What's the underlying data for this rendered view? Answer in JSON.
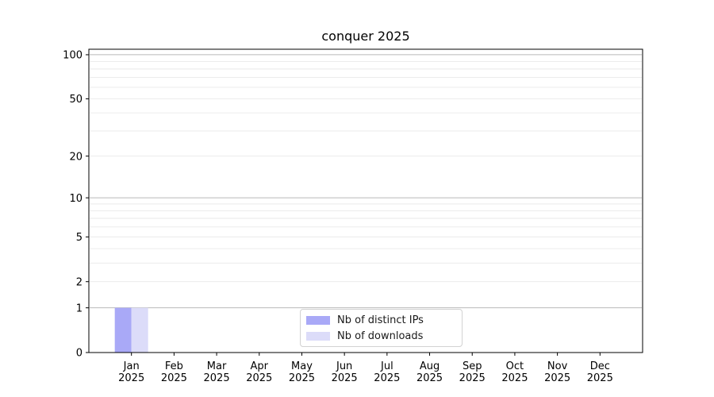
{
  "chart_data": {
    "type": "bar",
    "title": "conquer 2025",
    "categories": [
      "Jan 2025",
      "Feb 2025",
      "Mar 2025",
      "Apr 2025",
      "May 2025",
      "Jun 2025",
      "Jul 2025",
      "Aug 2025",
      "Sep 2025",
      "Oct 2025",
      "Nov 2025",
      "Dec 2025"
    ],
    "series": [
      {
        "name": "Nb of distinct IPs",
        "color": "#a9a9f7",
        "values": [
          1,
          0,
          0,
          0,
          0,
          0,
          0,
          0,
          0,
          0,
          0,
          0
        ]
      },
      {
        "name": "Nb of downloads",
        "color": "#dcdcf9",
        "values": [
          1,
          0,
          0,
          0,
          0,
          0,
          0,
          0,
          0,
          0,
          0,
          0
        ]
      }
    ],
    "yscale": "log1p",
    "y_ticks": [
      0,
      1,
      2,
      5,
      10,
      20,
      50,
      100
    ],
    "ylim": [
      0,
      109
    ],
    "xlabel": "",
    "ylabel": "",
    "grid": {
      "major": [
        1,
        10,
        100
      ],
      "minor": [
        2,
        3,
        4,
        5,
        6,
        7,
        8,
        9,
        20,
        30,
        40,
        50,
        60,
        70,
        80,
        90
      ]
    },
    "legend_position": "bottom-center"
  },
  "colors": {
    "background": "#ffffff",
    "axis": "#000000",
    "tick_label": "#000000",
    "major_grid": "#b9b9b9",
    "minor_grid": "#e9e9e9",
    "legend_border": "#d2d2d2"
  }
}
